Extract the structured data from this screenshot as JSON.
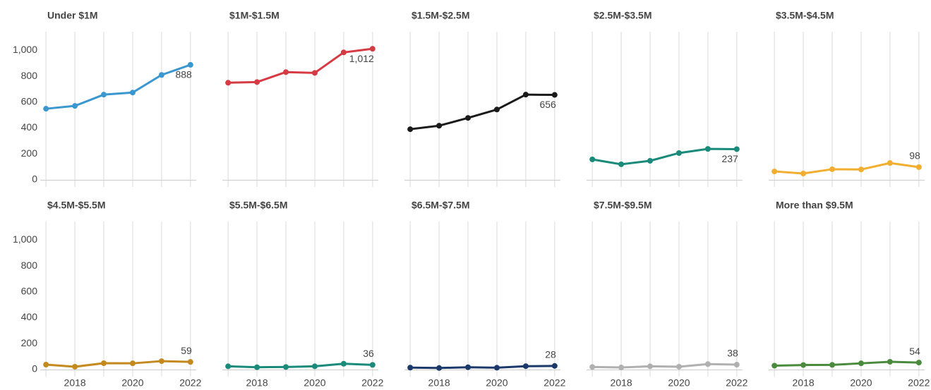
{
  "chart_data": [
    {
      "type": "line",
      "title": "Under $1M",
      "color": "#3a97d0",
      "x": [
        2017,
        2018,
        2019,
        2020,
        2021,
        2022
      ],
      "values": [
        549,
        571,
        658,
        674,
        810,
        888
      ],
      "value_labels": [
        null,
        null,
        null,
        null,
        null,
        "888"
      ],
      "xlim": [
        2016.8,
        2022.2
      ],
      "ylim": [
        0,
        1100
      ],
      "yticks": [
        0,
        200,
        400,
        600,
        800,
        {
          "value": 1000,
          "label": "1,000"
        }
      ]
    },
    {
      "type": "line",
      "title": "$1M-$1.5M",
      "color": "#d63a43",
      "x": [
        2017,
        2018,
        2019,
        2020,
        2021,
        2022
      ],
      "values": [
        750,
        755,
        832,
        826,
        984,
        1012
      ],
      "value_labels": [
        null,
        null,
        null,
        null,
        null,
        "1,012"
      ],
      "xlim": [
        2016.8,
        2022.2
      ],
      "ylim": [
        0,
        1100
      ]
    },
    {
      "type": "line",
      "title": "$1.5M-$2.5M",
      "color": "#1a1a1a",
      "x": [
        2017,
        2018,
        2019,
        2020,
        2021,
        2022
      ],
      "values": [
        391,
        418,
        478,
        543,
        658,
        656
      ],
      "value_labels": [
        null,
        null,
        null,
        null,
        null,
        "656"
      ],
      "xlim": [
        2016.8,
        2022.2
      ],
      "ylim": [
        0,
        1100
      ]
    },
    {
      "type": "line",
      "title": "$2.5M-$3.5M",
      "color": "#1a8a7a",
      "x": [
        2017,
        2018,
        2019,
        2020,
        2021,
        2022
      ],
      "values": [
        158,
        120,
        147,
        207,
        239,
        237
      ],
      "value_labels": [
        null,
        null,
        null,
        null,
        null,
        "237"
      ],
      "xlim": [
        2016.8,
        2022.2
      ],
      "ylim": [
        0,
        1100
      ]
    },
    {
      "type": "line",
      "title": "$3.5M-$4.5M",
      "color": "#f2ae30",
      "x": [
        2017,
        2018,
        2019,
        2020,
        2021,
        2022
      ],
      "values": [
        65,
        49,
        82,
        80,
        130,
        98
      ],
      "value_labels": [
        null,
        null,
        null,
        null,
        null,
        "98"
      ],
      "xlim": [
        2016.8,
        2022.2
      ],
      "ylim": [
        0,
        1100
      ]
    },
    {
      "type": "line",
      "title": "$4.5M-$5.5M",
      "color": "#c48a1e",
      "x": [
        2017,
        2018,
        2019,
        2020,
        2021,
        2022
      ],
      "values": [
        38,
        22,
        49,
        48,
        65,
        59
      ],
      "value_labels": [
        null,
        null,
        null,
        null,
        null,
        "59"
      ],
      "xlim": [
        2016.8,
        2022.2
      ],
      "ylim": [
        0,
        1100
      ],
      "yticks": [
        0,
        200,
        400,
        600,
        800,
        {
          "value": 1000,
          "label": "1,000"
        }
      ],
      "xticks": [
        2018,
        2020,
        2022
      ]
    },
    {
      "type": "line",
      "title": "$5.5M-$6.5M",
      "color": "#1a8a7a",
      "x": [
        2017,
        2018,
        2019,
        2020,
        2021,
        2022
      ],
      "values": [
        25,
        18,
        20,
        25,
        45,
        36
      ],
      "value_labels": [
        null,
        null,
        null,
        null,
        null,
        "36"
      ],
      "xlim": [
        2016.8,
        2022.2
      ],
      "ylim": [
        0,
        1100
      ],
      "xticks": [
        2018,
        2020,
        2022
      ]
    },
    {
      "type": "line",
      "title": "$6.5M-$7.5M",
      "color": "#1b3a6b",
      "x": [
        2017,
        2018,
        2019,
        2020,
        2021,
        2022
      ],
      "values": [
        15,
        12,
        18,
        14,
        26,
        28
      ],
      "value_labels": [
        null,
        null,
        null,
        null,
        null,
        "28"
      ],
      "xlim": [
        2016.8,
        2022.2
      ],
      "ylim": [
        0,
        1100
      ],
      "xticks": [
        2018,
        2020,
        2022
      ]
    },
    {
      "type": "line",
      "title": "$7.5M-$9.5M",
      "color": "#b0b0b0",
      "x": [
        2017,
        2018,
        2019,
        2020,
        2021,
        2022
      ],
      "values": [
        20,
        16,
        25,
        22,
        42,
        38
      ],
      "value_labels": [
        null,
        null,
        null,
        null,
        null,
        "38"
      ],
      "xlim": [
        2016.8,
        2022.2
      ],
      "ylim": [
        0,
        1100
      ],
      "xticks": [
        2018,
        2020,
        2022
      ]
    },
    {
      "type": "line",
      "title": "More than $9.5M",
      "color": "#4a8a3c",
      "x": [
        2017,
        2018,
        2019,
        2020,
        2021,
        2022
      ],
      "values": [
        30,
        35,
        36,
        48,
        60,
        54
      ],
      "value_labels": [
        null,
        null,
        null,
        null,
        null,
        "54"
      ],
      "xlim": [
        2016.8,
        2022.2
      ],
      "ylim": [
        0,
        1100
      ],
      "xticks": [
        2018,
        2020,
        2022
      ]
    }
  ]
}
